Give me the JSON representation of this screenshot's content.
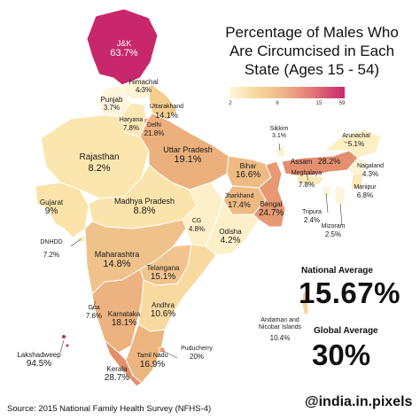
{
  "title": "Percentage of Males Who Are Circumcised in Each State (Ages 15 - 54)",
  "legend": {
    "ticks": [
      "2",
      "8",
      "15",
      "59"
    ],
    "colors": [
      "#fff7d9",
      "#f7dca3",
      "#efb98a",
      "#e27c78",
      "#c8286b"
    ]
  },
  "states": {
    "jk": {
      "name": "J&K",
      "value": "63.7%"
    },
    "himachal": {
      "name": "Himachal",
      "value": "4.3%"
    },
    "punjab": {
      "name": "Punjab",
      "value": "3.7%"
    },
    "uttarakhand": {
      "name": "Uttarakhand",
      "value": "14.1%"
    },
    "haryana": {
      "name": "Haryana",
      "value": "7.8%"
    },
    "delhi": {
      "name": "Delhi",
      "value": "21.8%"
    },
    "rajasthan": {
      "name": "Rajasthan",
      "value": "8.2%"
    },
    "uttar_pradesh": {
      "name": "Uttar Pradesh",
      "value": "19.1%"
    },
    "sikkim": {
      "name": "Sikkim",
      "value": "3.1%"
    },
    "arunachal": {
      "name": "Arunachal",
      "value": "5.1%"
    },
    "assam": {
      "name": "Assam",
      "value": "28.2%"
    },
    "nagaland": {
      "name": "Nagaland",
      "value": "4.3%"
    },
    "meghalaya": {
      "name": "Meghalaya",
      "value": "7.8%"
    },
    "manipur": {
      "name": "Manipur",
      "value": "6.8%"
    },
    "bihar": {
      "name": "Bihar",
      "value": "16.6%"
    },
    "jharkhand": {
      "name": "Jharkhand",
      "value": "17.4%"
    },
    "bengal": {
      "name": "Bengal",
      "value": "24.7%"
    },
    "tripura": {
      "name": "Tripura",
      "value": "2.4%"
    },
    "mizoram": {
      "name": "Mizoram",
      "value": "2.5%"
    },
    "gujarat": {
      "name": "Gujarat",
      "value": "9%"
    },
    "madhya_pradesh": {
      "name": "Madhya Pradesh",
      "value": "8.8%"
    },
    "cg": {
      "name": "CG",
      "value": "4.8%"
    },
    "odisha": {
      "name": "Odisha",
      "value": "4.2%"
    },
    "dnhdd": {
      "name": "DNHDD",
      "value": "7.2%"
    },
    "maharashtra": {
      "name": "Maharashtra",
      "value": "14.8%"
    },
    "telangana": {
      "name": "Telangana",
      "value": "15.1%"
    },
    "goa": {
      "name": "Goa",
      "value": "7.6%"
    },
    "karnataka": {
      "name": "Karnataka",
      "value": "18.1%"
    },
    "andhra": {
      "name": "Andhra",
      "value": "10.6%"
    },
    "andaman": {
      "name": "Andaman and Nicobar Islands",
      "name_line1": "Andaman and",
      "name_line2": "Nicobar Islands",
      "value": "10.4%"
    },
    "lakshadweep": {
      "name": "Lakshadweep",
      "value": "94.5%"
    },
    "kerala": {
      "name": "Kerala",
      "value": "28.7%"
    },
    "tamil_nadu": {
      "name": "Tamil Nadu",
      "value": "16.9%"
    },
    "puducherry": {
      "name": "Puducherry",
      "value": "20%"
    }
  },
  "stats": {
    "national_label": "National Average",
    "national_value": "15.67%",
    "global_label": "Global Average",
    "global_value": "30%"
  },
  "source": "Source:  2015 National Family Health Survey (NFHS-4)",
  "handle": "@india.in.pixels"
}
